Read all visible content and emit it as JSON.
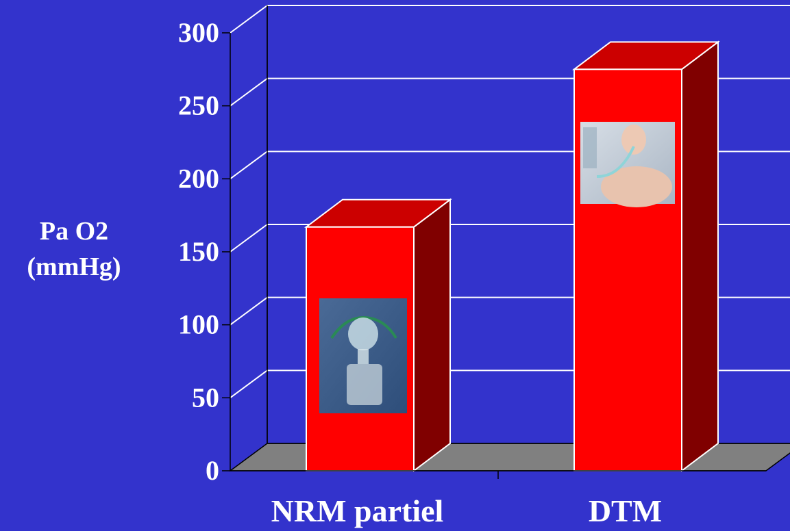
{
  "chart_data": {
    "type": "bar",
    "style": "3d",
    "ylabel_lines": [
      "Pa O2",
      "(mmHg)"
    ],
    "categories": [
      "NRM partiel",
      "DTM"
    ],
    "values": [
      167,
      275
    ],
    "ylim": [
      0,
      300
    ],
    "yticks": [
      "0",
      "50",
      "100",
      "150",
      "200",
      "250",
      "300"
    ],
    "grid": true,
    "colors": {
      "background": "#3333cc",
      "bar_front": "#ff0000",
      "bar_top": "#cc0000",
      "bar_side": "#800000",
      "floor": "#808080"
    },
    "bar_images": [
      "oxygen-mask-photo",
      "intubated-patient-photo"
    ]
  }
}
